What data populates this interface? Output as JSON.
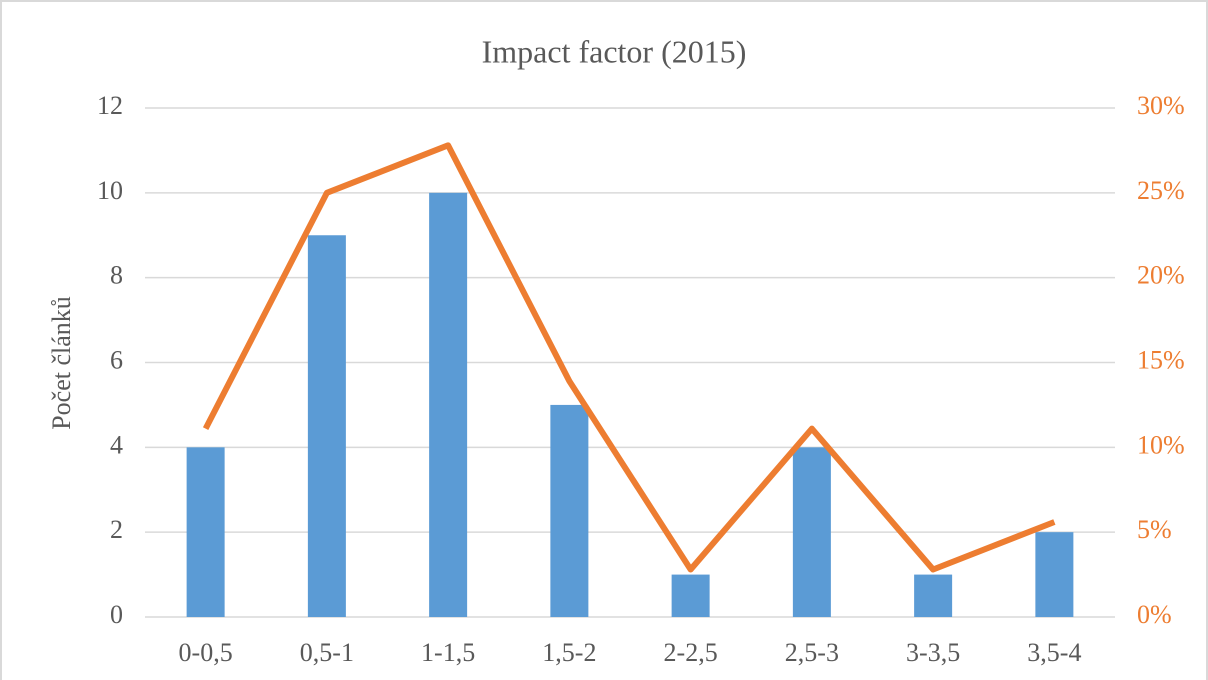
{
  "chart_data": {
    "type": "bar_line",
    "title": "Impact factor (2015)",
    "y_label": "Počet článků",
    "categories": [
      "0-0,5",
      "0,5-1",
      "1-1,5",
      "1,5-2",
      "2-2,5",
      "2,5-3",
      "3-3,5",
      "3,5-4"
    ],
    "series": [
      {
        "type": "bar",
        "color": "#5b9bd5",
        "values": [
          4,
          9,
          10,
          5,
          1,
          4,
          1,
          2
        ]
      },
      {
        "type": "line",
        "axis": "y2",
        "color": "#ed7d31",
        "values": [
          11.1,
          25,
          27.8,
          13.9,
          2.8,
          11.1,
          2.8,
          5.6
        ]
      }
    ],
    "ylim": [
      0,
      12
    ],
    "yticks": [
      0,
      2,
      4,
      6,
      8,
      10,
      12
    ],
    "y2lim": [
      0,
      30
    ],
    "y2ticks": [
      {
        "value": 0,
        "label": "0%"
      },
      {
        "value": 5,
        "label": "5%"
      },
      {
        "value": 10,
        "label": "10%"
      },
      {
        "value": 15,
        "label": "15%"
      },
      {
        "value": 20,
        "label": "20%"
      },
      {
        "value": 25,
        "label": "25%"
      },
      {
        "value": 30,
        "label": "30%"
      }
    ],
    "grid": true
  }
}
